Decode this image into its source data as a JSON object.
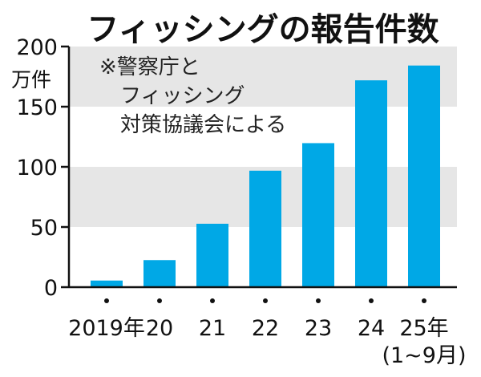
{
  "chart_data": {
    "type": "bar",
    "title": "フィッシングの報告件数",
    "y_unit": "万件",
    "categories": [
      "2019年",
      "20",
      "21",
      "22",
      "23",
      "24",
      "25年"
    ],
    "category_sublabels": [
      "",
      "",
      "",
      "",
      "",
      "",
      "(1~9月)"
    ],
    "values": [
      5.5,
      22.5,
      52.7,
      96.8,
      119.7,
      171.9,
      184.2
    ],
    "ylim": [
      0,
      200
    ],
    "yticks": [
      0,
      50,
      100,
      150,
      200
    ],
    "grid": "alternating horizontal bands",
    "source_note": [
      "※警察庁と",
      "フィッシング",
      "対策協議会による"
    ],
    "colors": {
      "bar": "#00a8e6",
      "band": "#e6e6e6",
      "axis": "#111111",
      "text": "#111111"
    }
  }
}
